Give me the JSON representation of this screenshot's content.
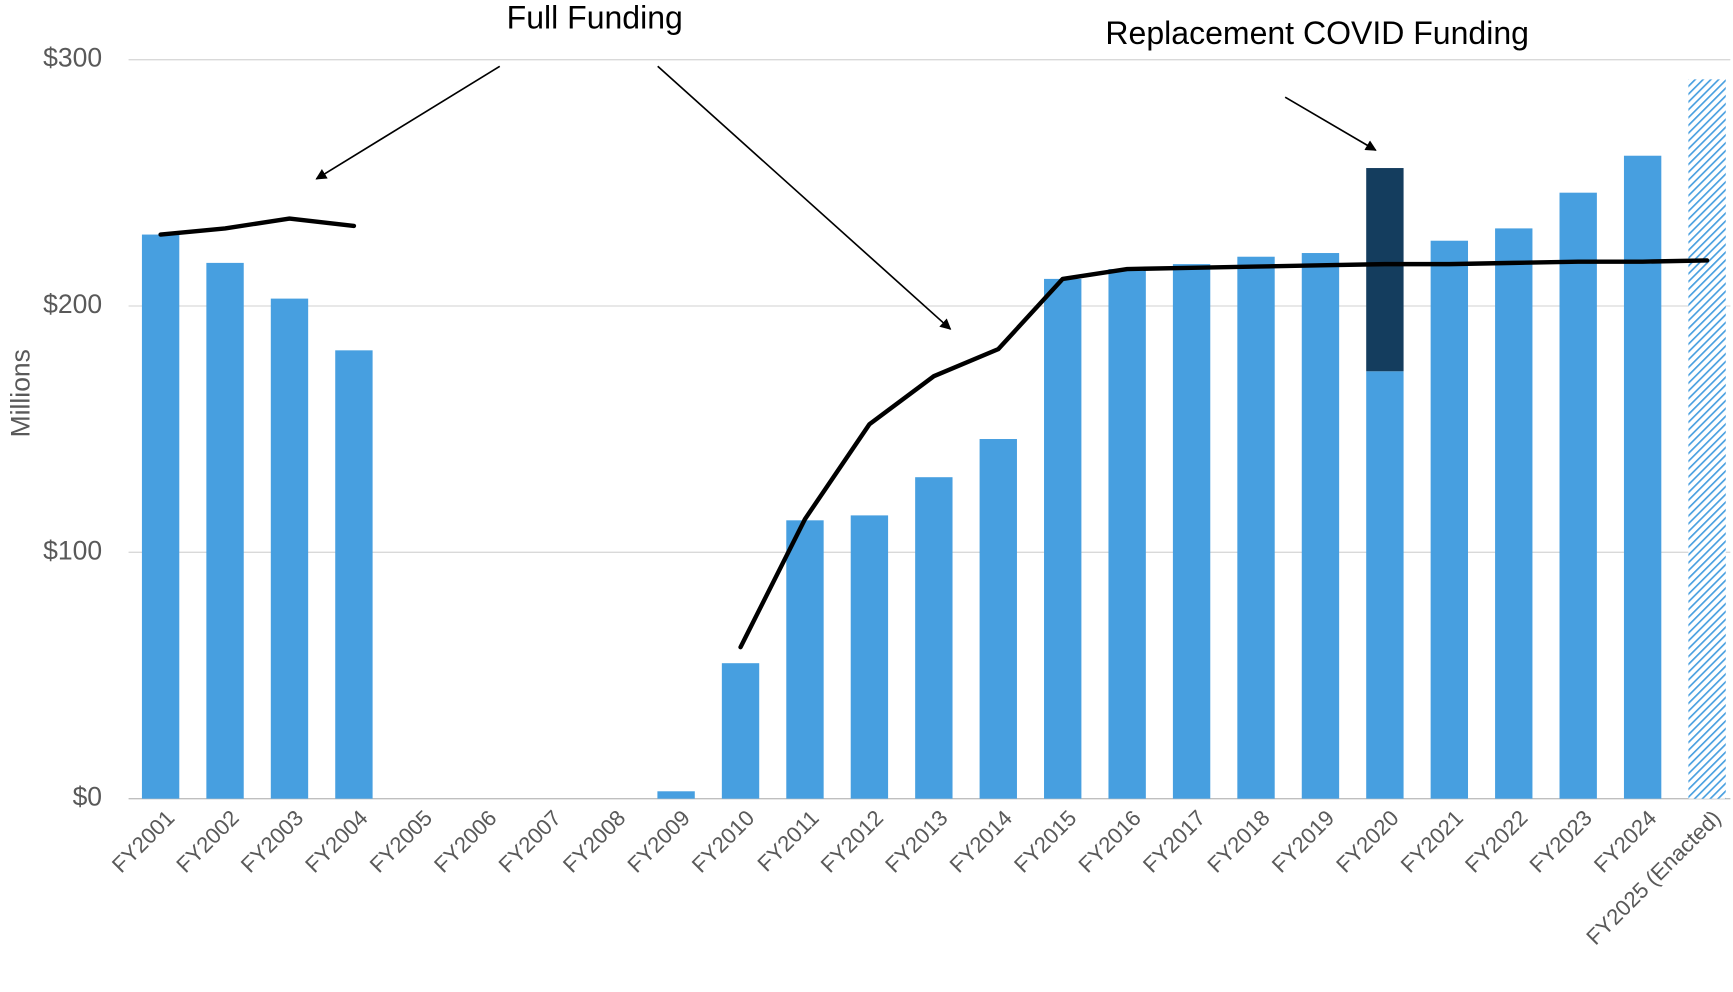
{
  "chart_data": {
    "type": "bar",
    "y_label": "Millions",
    "annotations": [
      "Full Funding",
      "Replacement COVID Funding"
    ],
    "categories": [
      "FY2001",
      "FY2002",
      "FY2003",
      "FY2004",
      "FY2005",
      "FY2006",
      "FY2007",
      "FY2008",
      "FY2009",
      "FY2010",
      "FY2011",
      "FY2012",
      "FY2013",
      "FY2014",
      "FY2015",
      "FY2016",
      "FY2017",
      "FY2018",
      "FY2019",
      "FY2020",
      "FY2021",
      "FY2022",
      "FY2023",
      "FY2024",
      "FY2025 (Enacted)"
    ],
    "series": [
      {
        "type": "bar",
        "color": "#479fe0",
        "values": [
          229,
          217.5,
          203,
          182,
          0,
          0,
          0,
          0,
          3,
          55,
          113,
          115,
          130.5,
          146,
          211,
          215,
          217,
          220,
          221.5,
          173.5,
          226.5,
          231.5,
          246,
          261,
          null
        ]
      },
      {
        "type": "bar",
        "color": "#143d5e",
        "values": [
          null,
          null,
          null,
          null,
          null,
          null,
          null,
          null,
          null,
          null,
          null,
          null,
          null,
          null,
          null,
          null,
          null,
          null,
          null,
          82.5,
          null,
          null,
          null,
          null,
          null
        ]
      },
      {
        "type": "bar",
        "color": "#479fe0",
        "pattern": "hatch",
        "values": [
          null,
          null,
          null,
          null,
          null,
          null,
          null,
          null,
          null,
          null,
          null,
          null,
          null,
          null,
          null,
          null,
          null,
          null,
          null,
          null,
          null,
          null,
          null,
          null,
          292
        ]
      },
      {
        "type": "line",
        "color": "#000000",
        "values": [
          229,
          231.5,
          235.5,
          232.5,
          null,
          null,
          null,
          null,
          null,
          61.5,
          113.5,
          152,
          171.5,
          182.5,
          211,
          215,
          215.5,
          216,
          216.5,
          217,
          217,
          217.5,
          218,
          218,
          218.5
        ]
      }
    ],
    "ylim": [
      0,
      300
    ],
    "yticks": [
      {
        "value": 0,
        "label": "$0"
      },
      {
        "value": 100,
        "label": "$100"
      },
      {
        "value": 200,
        "label": "$200"
      },
      {
        "value": 300,
        "label": "$300"
      }
    ],
    "grid": true
  }
}
